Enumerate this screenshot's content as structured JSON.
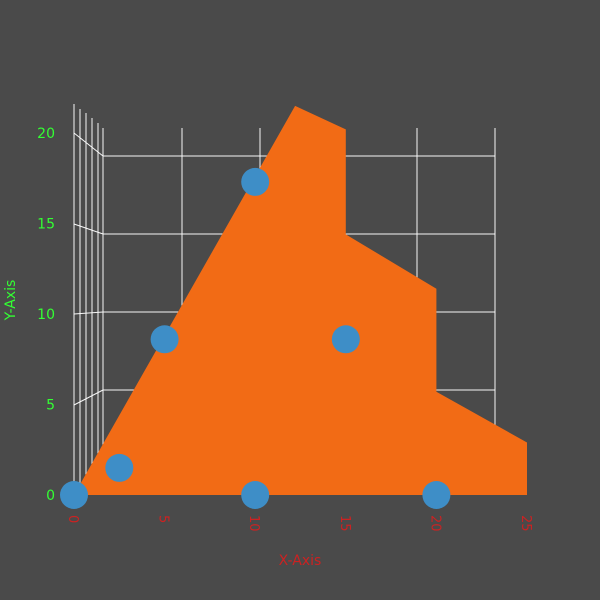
{
  "chart_data": {
    "type": "area",
    "xlabel": "X-Axis",
    "ylabel": "Y-Axis",
    "xlim": [
      0,
      25
    ],
    "ylim": [
      0,
      20
    ],
    "xticks": [
      "0",
      "5",
      "10",
      "15",
      "20",
      "25"
    ],
    "yticks": [
      "0",
      "5",
      "10",
      "15",
      "20"
    ],
    "grid": true,
    "colors": {
      "area": "#f26b15",
      "points": "#3e8ec7",
      "background": "#4a4a4a",
      "grid": "#ffffff"
    },
    "area_outline": [
      {
        "x": 0,
        "y": 0
      },
      {
        "x": 12.2,
        "y": 21.5
      },
      {
        "x": 15,
        "y": 20.2
      },
      {
        "x": 15,
        "y": 14.4
      },
      {
        "x": 20,
        "y": 11.4
      },
      {
        "x": 20,
        "y": 5.7
      },
      {
        "x": 25,
        "y": 2.9
      },
      {
        "x": 25,
        "y": 0
      }
    ],
    "points": [
      {
        "x": 0,
        "y": 0
      },
      {
        "x": 2.5,
        "y": 1.5
      },
      {
        "x": 5,
        "y": 8.6
      },
      {
        "x": 10,
        "y": 17.3
      },
      {
        "x": 10,
        "y": 0
      },
      {
        "x": 15,
        "y": 8.6
      },
      {
        "x": 20,
        "y": 0
      }
    ]
  }
}
